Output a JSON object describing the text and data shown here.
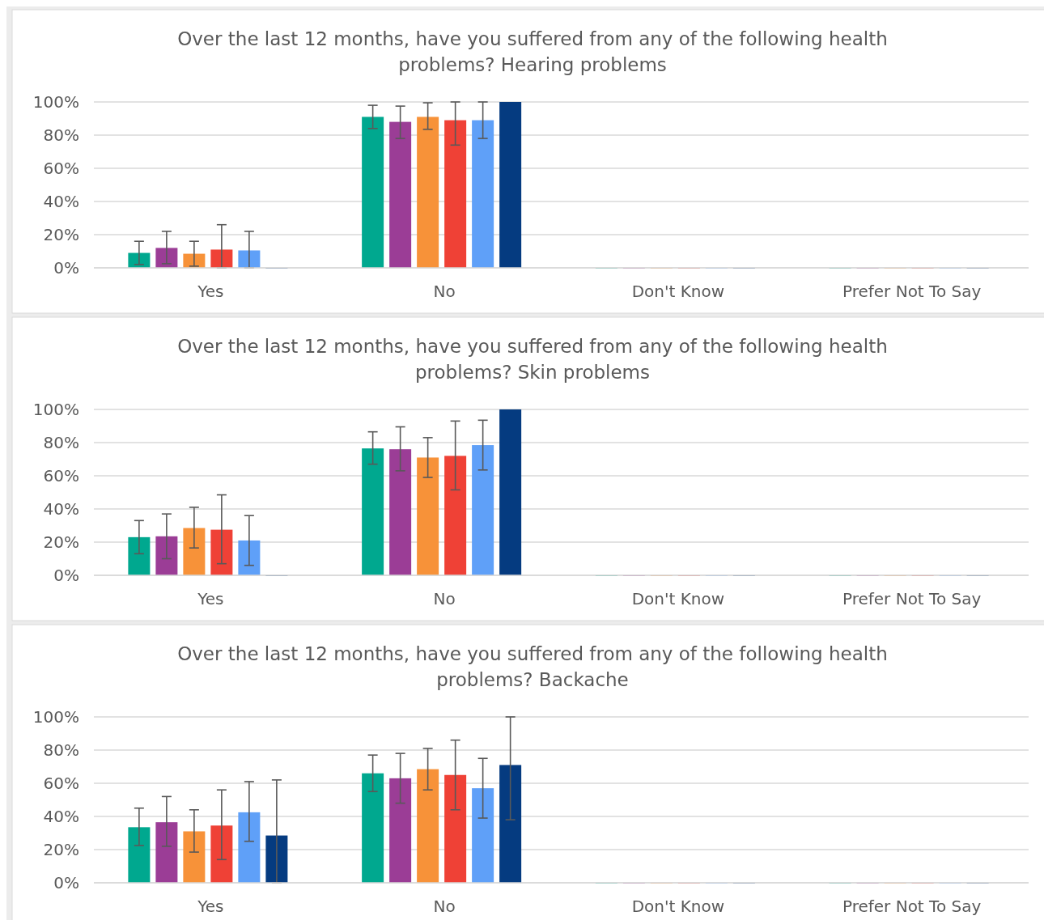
{
  "chart_data": [
    {
      "type": "bar",
      "title": "Over the last 12 months, have you suffered from any of the following health problems? Hearing problems",
      "categories": [
        "Yes",
        "No",
        "Don't Know",
        "Prefer Not To Say"
      ],
      "ylim": [
        0,
        100
      ],
      "yticks": [
        {
          "value": 0,
          "label": "0%"
        },
        {
          "value": 20,
          "label": "20%"
        },
        {
          "value": 40,
          "label": "40%"
        },
        {
          "value": 60,
          "label": "60%"
        },
        {
          "value": 80,
          "label": "80%"
        },
        {
          "value": 100,
          "label": "100%"
        }
      ],
      "grid": "y",
      "series": [
        {
          "color": "#00a88f",
          "values": [
            9,
            91,
            0,
            0
          ],
          "errors": [
            [
              2,
              16
            ],
            [
              84,
              98
            ],
            null,
            null
          ]
        },
        {
          "color": "#9b3d96",
          "values": [
            12,
            88,
            0,
            0
          ],
          "errors": [
            [
              2.5,
              22
            ],
            [
              78,
              97.5
            ],
            null,
            null
          ]
        },
        {
          "color": "#f79239",
          "values": [
            8.5,
            91,
            0,
            0
          ],
          "errors": [
            [
              1,
              16
            ],
            [
              83.5,
              99.5
            ],
            null,
            null
          ]
        },
        {
          "color": "#ef4136",
          "values": [
            11,
            89,
            0,
            0
          ],
          "errors": [
            [
              0,
              26
            ],
            [
              74,
              100
            ],
            null,
            null
          ]
        },
        {
          "color": "#5fa0f8",
          "values": [
            10.5,
            89,
            0,
            0
          ],
          "errors": [
            [
              0,
              22
            ],
            [
              78,
              100
            ],
            null,
            null
          ]
        },
        {
          "color": "#053b80",
          "values": [
            0,
            100,
            0,
            0
          ],
          "errors": [
            null,
            null,
            null,
            null
          ]
        }
      ]
    },
    {
      "type": "bar",
      "title": "Over the last 12 months, have you suffered from any of the following health problems? Skin problems",
      "categories": [
        "Yes",
        "No",
        "Don't Know",
        "Prefer Not To Say"
      ],
      "ylim": [
        0,
        100
      ],
      "yticks": [
        {
          "value": 0,
          "label": "0%"
        },
        {
          "value": 20,
          "label": "20%"
        },
        {
          "value": 40,
          "label": "40%"
        },
        {
          "value": 60,
          "label": "60%"
        },
        {
          "value": 80,
          "label": "80%"
        },
        {
          "value": 100,
          "label": "100%"
        }
      ],
      "grid": "y",
      "series": [
        {
          "color": "#00a88f",
          "values": [
            23,
            76.5,
            0,
            0
          ],
          "errors": [
            [
              13,
              33
            ],
            [
              67,
              86.5
            ],
            null,
            null
          ]
        },
        {
          "color": "#9b3d96",
          "values": [
            23.5,
            76,
            0,
            0
          ],
          "errors": [
            [
              10,
              37
            ],
            [
              63,
              89.5
            ],
            null,
            null
          ]
        },
        {
          "color": "#f79239",
          "values": [
            28.5,
            71,
            0,
            0
          ],
          "errors": [
            [
              16.5,
              41
            ],
            [
              59,
              83
            ],
            null,
            null
          ]
        },
        {
          "color": "#ef4136",
          "values": [
            27.5,
            72,
            0,
            0
          ],
          "errors": [
            [
              7,
              48.5
            ],
            [
              51.5,
              93
            ],
            null,
            null
          ]
        },
        {
          "color": "#5fa0f8",
          "values": [
            21,
            78.5,
            0,
            0
          ],
          "errors": [
            [
              6,
              36
            ],
            [
              63.5,
              93.5
            ],
            null,
            null
          ]
        },
        {
          "color": "#053b80",
          "values": [
            0,
            100,
            0,
            0
          ],
          "errors": [
            null,
            null,
            null,
            null
          ]
        }
      ]
    },
    {
      "type": "bar",
      "title": "Over the last 12 months, have you suffered from any of the following health problems? Backache",
      "categories": [
        "Yes",
        "No",
        "Don't Know",
        "Prefer Not To Say"
      ],
      "ylim": [
        0,
        100
      ],
      "yticks": [
        {
          "value": 0,
          "label": "0%"
        },
        {
          "value": 20,
          "label": "20%"
        },
        {
          "value": 40,
          "label": "40%"
        },
        {
          "value": 60,
          "label": "60%"
        },
        {
          "value": 80,
          "label": "80%"
        },
        {
          "value": 100,
          "label": "100%"
        }
      ],
      "grid": "y",
      "series": [
        {
          "color": "#00a88f",
          "values": [
            33.5,
            66,
            0,
            0
          ],
          "errors": [
            [
              22.5,
              45
            ],
            [
              55,
              77
            ],
            null,
            null
          ]
        },
        {
          "color": "#9b3d96",
          "values": [
            36.5,
            63,
            0,
            0
          ],
          "errors": [
            [
              22,
              52
            ],
            [
              48,
              78
            ],
            null,
            null
          ]
        },
        {
          "color": "#f79239",
          "values": [
            31,
            68.5,
            0,
            0
          ],
          "errors": [
            [
              18.5,
              44
            ],
            [
              56,
              81
            ],
            null,
            null
          ]
        },
        {
          "color": "#ef4136",
          "values": [
            34.5,
            65,
            0,
            0
          ],
          "errors": [
            [
              14,
              56
            ],
            [
              44,
              86
            ],
            null,
            null
          ]
        },
        {
          "color": "#5fa0f8",
          "values": [
            42.5,
            57,
            0,
            0
          ],
          "errors": [
            [
              25,
              61
            ],
            [
              39,
              75
            ],
            null,
            null
          ]
        },
        {
          "color": "#053b80",
          "values": [
            28.5,
            71,
            0,
            0
          ],
          "errors": [
            [
              0,
              62
            ],
            [
              38,
              100
            ],
            null,
            null
          ]
        }
      ]
    }
  ]
}
